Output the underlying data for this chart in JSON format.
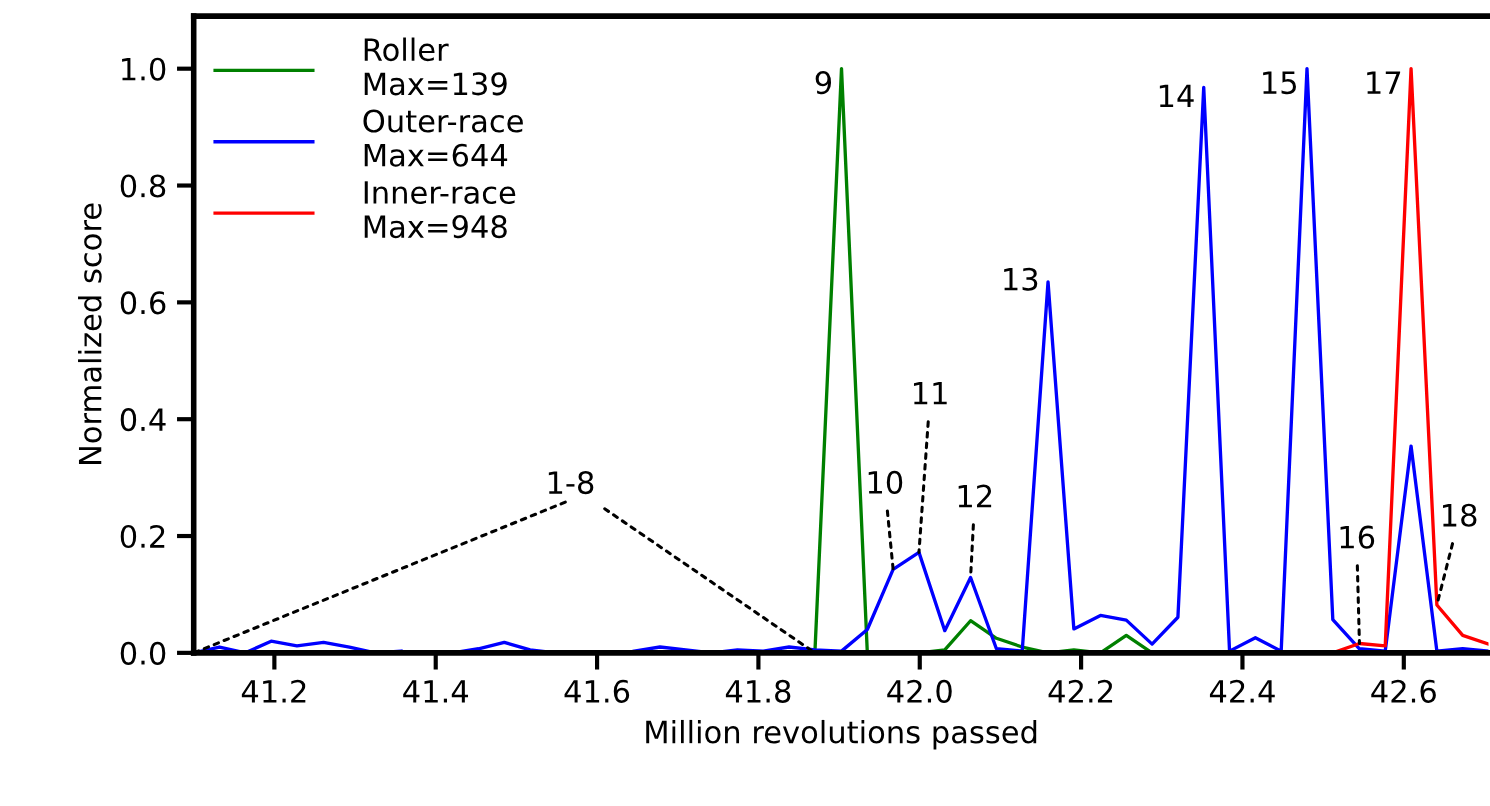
{
  "chart_data": {
    "type": "line",
    "xlabel": "Million revolutions passed",
    "ylabel": "Normalized score",
    "xlim": [
      41.1,
      42.705
    ],
    "ylim": [
      0,
      1.09
    ],
    "xticks": [
      {
        "value": 41.2,
        "label": "41.2"
      },
      {
        "value": 41.4,
        "label": "41.4"
      },
      {
        "value": 41.6,
        "label": "41.6"
      },
      {
        "value": 41.8,
        "label": "41.8"
      },
      {
        "value": 42.0,
        "label": "42.0"
      },
      {
        "value": 42.2,
        "label": "42.2"
      },
      {
        "value": 42.4,
        "label": "42.4"
      },
      {
        "value": 42.6,
        "label": "42.6"
      }
    ],
    "yticks": [
      {
        "value": 0,
        "label": "0.0"
      },
      {
        "value": 0.2,
        "label": "0.2"
      },
      {
        "value": 0.4,
        "label": "0.4"
      },
      {
        "value": 0.6,
        "label": "0.6"
      },
      {
        "value": 0.8,
        "label": "0.8"
      },
      {
        "value": 1.0,
        "label": "1.0"
      }
    ],
    "x": [
      41.1,
      41.132,
      41.164,
      41.196,
      41.228,
      41.261,
      41.293,
      41.325,
      41.357,
      41.389,
      41.421,
      41.453,
      41.485,
      41.517,
      41.549,
      41.582,
      41.614,
      41.646,
      41.678,
      41.71,
      41.742,
      41.774,
      41.806,
      41.838,
      41.87,
      41.903,
      41.935,
      41.967,
      41.999,
      42.031,
      42.063,
      42.095,
      42.127,
      42.159,
      42.191,
      42.224,
      42.256,
      42.288,
      42.32,
      42.352,
      42.384,
      42.416,
      42.448,
      42.48,
      42.512,
      42.545,
      42.577,
      42.609,
      42.641,
      42.673,
      42.705
    ],
    "grid": false,
    "legend": "top left",
    "marker": "none",
    "line_style": "solid",
    "series": [
      {
        "name": "Roller\nMax=139",
        "color": "#008000",
        "values": [
          null,
          null,
          null,
          null,
          null,
          null,
          null,
          null,
          null,
          null,
          null,
          null,
          null,
          null,
          null,
          null,
          null,
          null,
          null,
          null,
          null,
          null,
          null,
          null,
          0,
          1.0,
          0,
          null,
          0,
          0.005,
          0.055,
          0.025,
          0.01,
          0,
          0.005,
          0,
          0.03,
          0,
          null,
          null,
          null,
          null,
          null,
          null,
          null,
          null,
          null,
          null,
          null,
          null,
          null
        ]
      },
      {
        "name": "Outer-race\nMax=644",
        "color": "#0000ff",
        "values": [
          0,
          0.01,
          0,
          0.02,
          0.012,
          0.018,
          0.01,
          0,
          0.003,
          null,
          0,
          0.007,
          0.018,
          0.005,
          0,
          null,
          null,
          0.003,
          0.01,
          0.005,
          0,
          0.005,
          0.003,
          0.01,
          0.005,
          0.003,
          0.04,
          0.143,
          0.172,
          0.038,
          0.129,
          0.007,
          0.003,
          0.635,
          0.041,
          0.064,
          0.056,
          0.015,
          0.061,
          0.968,
          0.003,
          0.026,
          0.003,
          1.0,
          0.057,
          0.007,
          0.003,
          0.354,
          0.003,
          0.007,
          0.003
        ]
      },
      {
        "name": "Inner-race\nMax=948",
        "color": "#ff0000",
        "values": [
          null,
          null,
          null,
          null,
          null,
          null,
          null,
          null,
          null,
          null,
          null,
          null,
          null,
          null,
          null,
          null,
          null,
          null,
          null,
          null,
          null,
          null,
          null,
          null,
          null,
          null,
          null,
          null,
          null,
          null,
          null,
          null,
          null,
          null,
          null,
          null,
          null,
          null,
          null,
          null,
          null,
          null,
          null,
          null,
          0,
          0.016,
          0.012,
          1.0,
          0.082,
          0.03,
          0.015
        ]
      }
    ],
    "annotations": [
      {
        "text": "1-8",
        "x": 41.87,
        "y": 0
      },
      {
        "text": "9",
        "x": 41.903,
        "y": 1.0
      },
      {
        "text": "10",
        "x": 41.967,
        "y": 0.143
      },
      {
        "text": "11",
        "x": 41.999,
        "y": 0.172
      },
      {
        "text": "12",
        "x": 42.063,
        "y": 0.129
      },
      {
        "text": "13",
        "x": 42.159,
        "y": 0.635
      },
      {
        "text": "14",
        "x": 42.352,
        "y": 0.968
      },
      {
        "text": "15",
        "x": 42.48,
        "y": 1.0
      },
      {
        "text": "16",
        "x": 42.545,
        "y": 0.016
      },
      {
        "text": "17",
        "x": 42.609,
        "y": 1.0
      },
      {
        "text": "18",
        "x": 42.641,
        "y": 0.082
      }
    ]
  }
}
